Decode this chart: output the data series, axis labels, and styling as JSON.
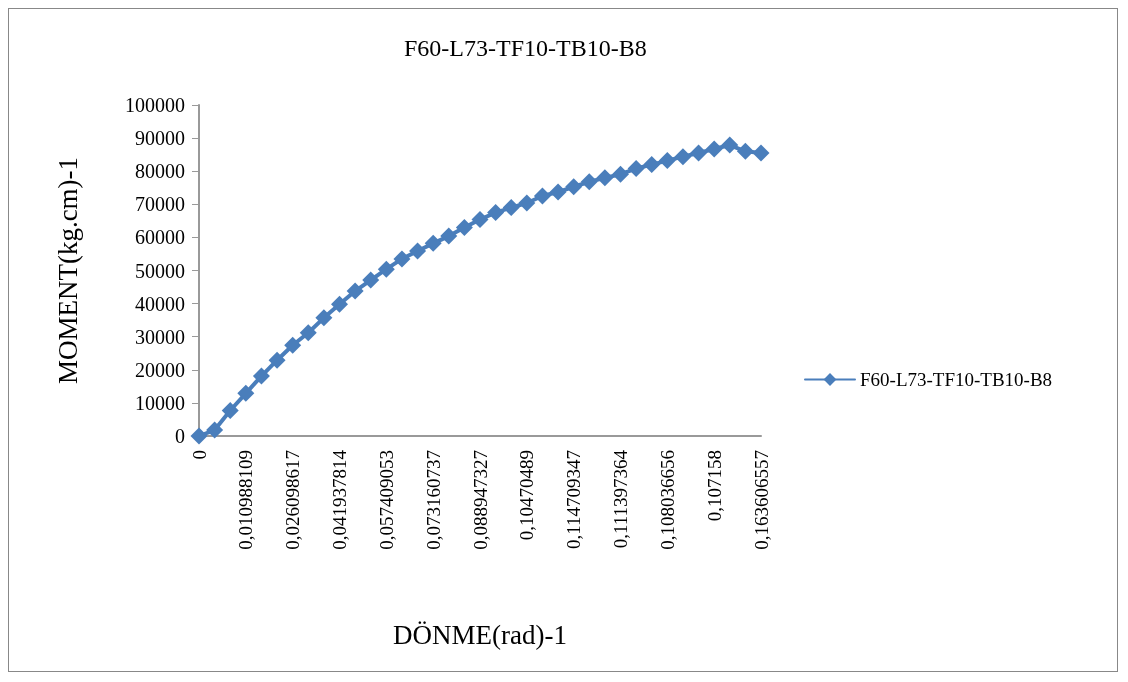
{
  "chart_data": {
    "type": "line",
    "title": "F60-L73-TF10-TB10-B8",
    "xlabel": "DÖNME(rad)-1",
    "ylabel": "MOMENT(kg.cm)-1",
    "categories": [
      "0",
      null,
      null,
      "0,010988109",
      null,
      null,
      "0,026098617",
      null,
      null,
      "0,041937814",
      null,
      null,
      "0,057409053",
      null,
      null,
      "0,073160737",
      null,
      null,
      "0,088947327",
      null,
      null,
      "0,10470489",
      null,
      null,
      "0,114709347",
      null,
      null,
      "0,111397364",
      null,
      null,
      "0,108036656",
      null,
      null,
      "0,107158",
      null,
      null,
      "0,163606557"
    ],
    "series": [
      {
        "name": "F60-L73-TF10-TB10-B8",
        "color": "#4a7ebb",
        "values": [
          0,
          1800,
          7700,
          12900,
          18100,
          22900,
          27400,
          31200,
          35700,
          39800,
          43800,
          47100,
          50400,
          53500,
          55900,
          58200,
          60400,
          63000,
          65400,
          67500,
          69000,
          70400,
          72500,
          73700,
          75300,
          76800,
          78000,
          79100,
          80800,
          82000,
          83200,
          84400,
          85500,
          86700,
          87900,
          86000,
          85500
        ]
      }
    ],
    "ylim": [
      0,
      100000
    ],
    "yticks": [
      0,
      10000,
      20000,
      30000,
      40000,
      50000,
      60000,
      70000,
      80000,
      90000,
      100000
    ],
    "grid": false,
    "legend": "right",
    "marker": "diamond",
    "line_style": "solid"
  }
}
